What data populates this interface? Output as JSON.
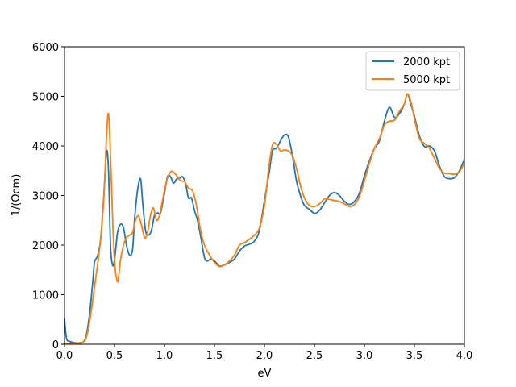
{
  "chart_data": {
    "type": "line",
    "xlabel": "eV",
    "ylabel": "1/(Ωcm)",
    "xlim": [
      0.0,
      4.0
    ],
    "ylim": [
      0,
      6000
    ],
    "x_ticks": [
      "0.0",
      "0.5",
      "1.0",
      "1.5",
      "2.0",
      "2.5",
      "3.0",
      "3.5",
      "4.0"
    ],
    "y_ticks": [
      "0",
      "1000",
      "2000",
      "3000",
      "4000",
      "5000",
      "6000"
    ],
    "grid": false,
    "legend_position": "top-right",
    "series": [
      {
        "name": "2000 kpt",
        "color": "#1f77b4",
        "points": [
          [
            0.0,
            520
          ],
          [
            0.02,
            120
          ],
          [
            0.05,
            60
          ],
          [
            0.1,
            30
          ],
          [
            0.15,
            25
          ],
          [
            0.18,
            40
          ],
          [
            0.2,
            80
          ],
          [
            0.22,
            200
          ],
          [
            0.25,
            600
          ],
          [
            0.28,
            1200
          ],
          [
            0.3,
            1650
          ],
          [
            0.33,
            1780
          ],
          [
            0.36,
            2100
          ],
          [
            0.39,
            2900
          ],
          [
            0.42,
            3880
          ],
          [
            0.44,
            3500
          ],
          [
            0.46,
            2000
          ],
          [
            0.48,
            1600
          ],
          [
            0.5,
            1700
          ],
          [
            0.53,
            2250
          ],
          [
            0.56,
            2420
          ],
          [
            0.59,
            2350
          ],
          [
            0.62,
            2000
          ],
          [
            0.65,
            1800
          ],
          [
            0.68,
            1900
          ],
          [
            0.7,
            2500
          ],
          [
            0.73,
            3100
          ],
          [
            0.76,
            3340
          ],
          [
            0.78,
            2900
          ],
          [
            0.81,
            2300
          ],
          [
            0.84,
            2200
          ],
          [
            0.87,
            2300
          ],
          [
            0.9,
            2600
          ],
          [
            0.93,
            2650
          ],
          [
            0.96,
            2650
          ],
          [
            1.0,
            3050
          ],
          [
            1.03,
            3380
          ],
          [
            1.06,
            3380
          ],
          [
            1.09,
            3250
          ],
          [
            1.12,
            3330
          ],
          [
            1.15,
            3350
          ],
          [
            1.18,
            3380
          ],
          [
            1.21,
            3250
          ],
          [
            1.24,
            2950
          ],
          [
            1.27,
            2950
          ],
          [
            1.3,
            2700
          ],
          [
            1.33,
            2500
          ],
          [
            1.36,
            2200
          ],
          [
            1.4,
            1750
          ],
          [
            1.43,
            1680
          ],
          [
            1.46,
            1720
          ],
          [
            1.5,
            1680
          ],
          [
            1.55,
            1580
          ],
          [
            1.6,
            1600
          ],
          [
            1.65,
            1650
          ],
          [
            1.7,
            1720
          ],
          [
            1.75,
            1880
          ],
          [
            1.8,
            1980
          ],
          [
            1.85,
            2020
          ],
          [
            1.9,
            2080
          ],
          [
            1.95,
            2300
          ],
          [
            2.0,
            2900
          ],
          [
            2.05,
            3500
          ],
          [
            2.08,
            3900
          ],
          [
            2.12,
            3950
          ],
          [
            2.16,
            4100
          ],
          [
            2.2,
            4220
          ],
          [
            2.24,
            4180
          ],
          [
            2.28,
            3800
          ],
          [
            2.32,
            3300
          ],
          [
            2.36,
            3000
          ],
          [
            2.4,
            2800
          ],
          [
            2.45,
            2720
          ],
          [
            2.5,
            2640
          ],
          [
            2.55,
            2700
          ],
          [
            2.6,
            2850
          ],
          [
            2.65,
            3000
          ],
          [
            2.7,
            3060
          ],
          [
            2.75,
            3000
          ],
          [
            2.8,
            2880
          ],
          [
            2.85,
            2820
          ],
          [
            2.9,
            2880
          ],
          [
            2.95,
            3050
          ],
          [
            3.0,
            3400
          ],
          [
            3.05,
            3700
          ],
          [
            3.1,
            3950
          ],
          [
            3.15,
            4100
          ],
          [
            3.2,
            4500
          ],
          [
            3.25,
            4780
          ],
          [
            3.3,
            4580
          ],
          [
            3.35,
            4650
          ],
          [
            3.4,
            4850
          ],
          [
            3.43,
            5050
          ],
          [
            3.47,
            4800
          ],
          [
            3.5,
            4600
          ],
          [
            3.55,
            4200
          ],
          [
            3.6,
            3990
          ],
          [
            3.65,
            4000
          ],
          [
            3.7,
            3900
          ],
          [
            3.75,
            3600
          ],
          [
            3.8,
            3380
          ],
          [
            3.85,
            3340
          ],
          [
            3.9,
            3360
          ],
          [
            3.95,
            3500
          ],
          [
            4.0,
            3730
          ]
        ]
      },
      {
        "name": "5000 kpt",
        "color": "#ff7f0e",
        "points": [
          [
            0.0,
            20
          ],
          [
            0.05,
            15
          ],
          [
            0.1,
            20
          ],
          [
            0.15,
            30
          ],
          [
            0.18,
            40
          ],
          [
            0.2,
            70
          ],
          [
            0.22,
            150
          ],
          [
            0.25,
            450
          ],
          [
            0.28,
            850
          ],
          [
            0.31,
            1300
          ],
          [
            0.34,
            1750
          ],
          [
            0.37,
            2300
          ],
          [
            0.4,
            3200
          ],
          [
            0.42,
            4200
          ],
          [
            0.44,
            4650
          ],
          [
            0.46,
            3800
          ],
          [
            0.48,
            2600
          ],
          [
            0.5,
            1700
          ],
          [
            0.53,
            1250
          ],
          [
            0.56,
            1700
          ],
          [
            0.59,
            2000
          ],
          [
            0.62,
            2150
          ],
          [
            0.65,
            2200
          ],
          [
            0.68,
            2250
          ],
          [
            0.71,
            2500
          ],
          [
            0.74,
            2590
          ],
          [
            0.77,
            2400
          ],
          [
            0.8,
            2150
          ],
          [
            0.83,
            2250
          ],
          [
            0.86,
            2600
          ],
          [
            0.89,
            2750
          ],
          [
            0.92,
            2500
          ],
          [
            0.95,
            2600
          ],
          [
            0.98,
            2900
          ],
          [
            1.01,
            3200
          ],
          [
            1.04,
            3400
          ],
          [
            1.07,
            3490
          ],
          [
            1.1,
            3450
          ],
          [
            1.13,
            3380
          ],
          [
            1.16,
            3300
          ],
          [
            1.2,
            3280
          ],
          [
            1.24,
            3150
          ],
          [
            1.28,
            3100
          ],
          [
            1.32,
            2800
          ],
          [
            1.36,
            2300
          ],
          [
            1.4,
            2000
          ],
          [
            1.45,
            1800
          ],
          [
            1.5,
            1650
          ],
          [
            1.55,
            1570
          ],
          [
            1.6,
            1600
          ],
          [
            1.65,
            1680
          ],
          [
            1.7,
            1800
          ],
          [
            1.75,
            2000
          ],
          [
            1.8,
            2050
          ],
          [
            1.85,
            2120
          ],
          [
            1.9,
            2200
          ],
          [
            1.95,
            2350
          ],
          [
            2.0,
            2800
          ],
          [
            2.04,
            3500
          ],
          [
            2.08,
            4020
          ],
          [
            2.12,
            4030
          ],
          [
            2.16,
            3900
          ],
          [
            2.2,
            3920
          ],
          [
            2.24,
            3900
          ],
          [
            2.28,
            3800
          ],
          [
            2.32,
            3550
          ],
          [
            2.36,
            3200
          ],
          [
            2.4,
            2950
          ],
          [
            2.45,
            2800
          ],
          [
            2.5,
            2780
          ],
          [
            2.55,
            2830
          ],
          [
            2.6,
            2930
          ],
          [
            2.65,
            2920
          ],
          [
            2.7,
            2900
          ],
          [
            2.75,
            2880
          ],
          [
            2.8,
            2830
          ],
          [
            2.85,
            2780
          ],
          [
            2.9,
            2820
          ],
          [
            2.95,
            2980
          ],
          [
            3.0,
            3300
          ],
          [
            3.05,
            3650
          ],
          [
            3.1,
            3950
          ],
          [
            3.15,
            4150
          ],
          [
            3.2,
            4420
          ],
          [
            3.25,
            4500
          ],
          [
            3.3,
            4520
          ],
          [
            3.35,
            4700
          ],
          [
            3.4,
            4850
          ],
          [
            3.43,
            5050
          ],
          [
            3.47,
            4850
          ],
          [
            3.5,
            4550
          ],
          [
            3.55,
            4150
          ],
          [
            3.6,
            4050
          ],
          [
            3.65,
            3950
          ],
          [
            3.7,
            3750
          ],
          [
            3.75,
            3550
          ],
          [
            3.8,
            3450
          ],
          [
            3.85,
            3440
          ],
          [
            3.9,
            3430
          ],
          [
            3.95,
            3480
          ],
          [
            4.0,
            3650
          ]
        ]
      }
    ]
  }
}
